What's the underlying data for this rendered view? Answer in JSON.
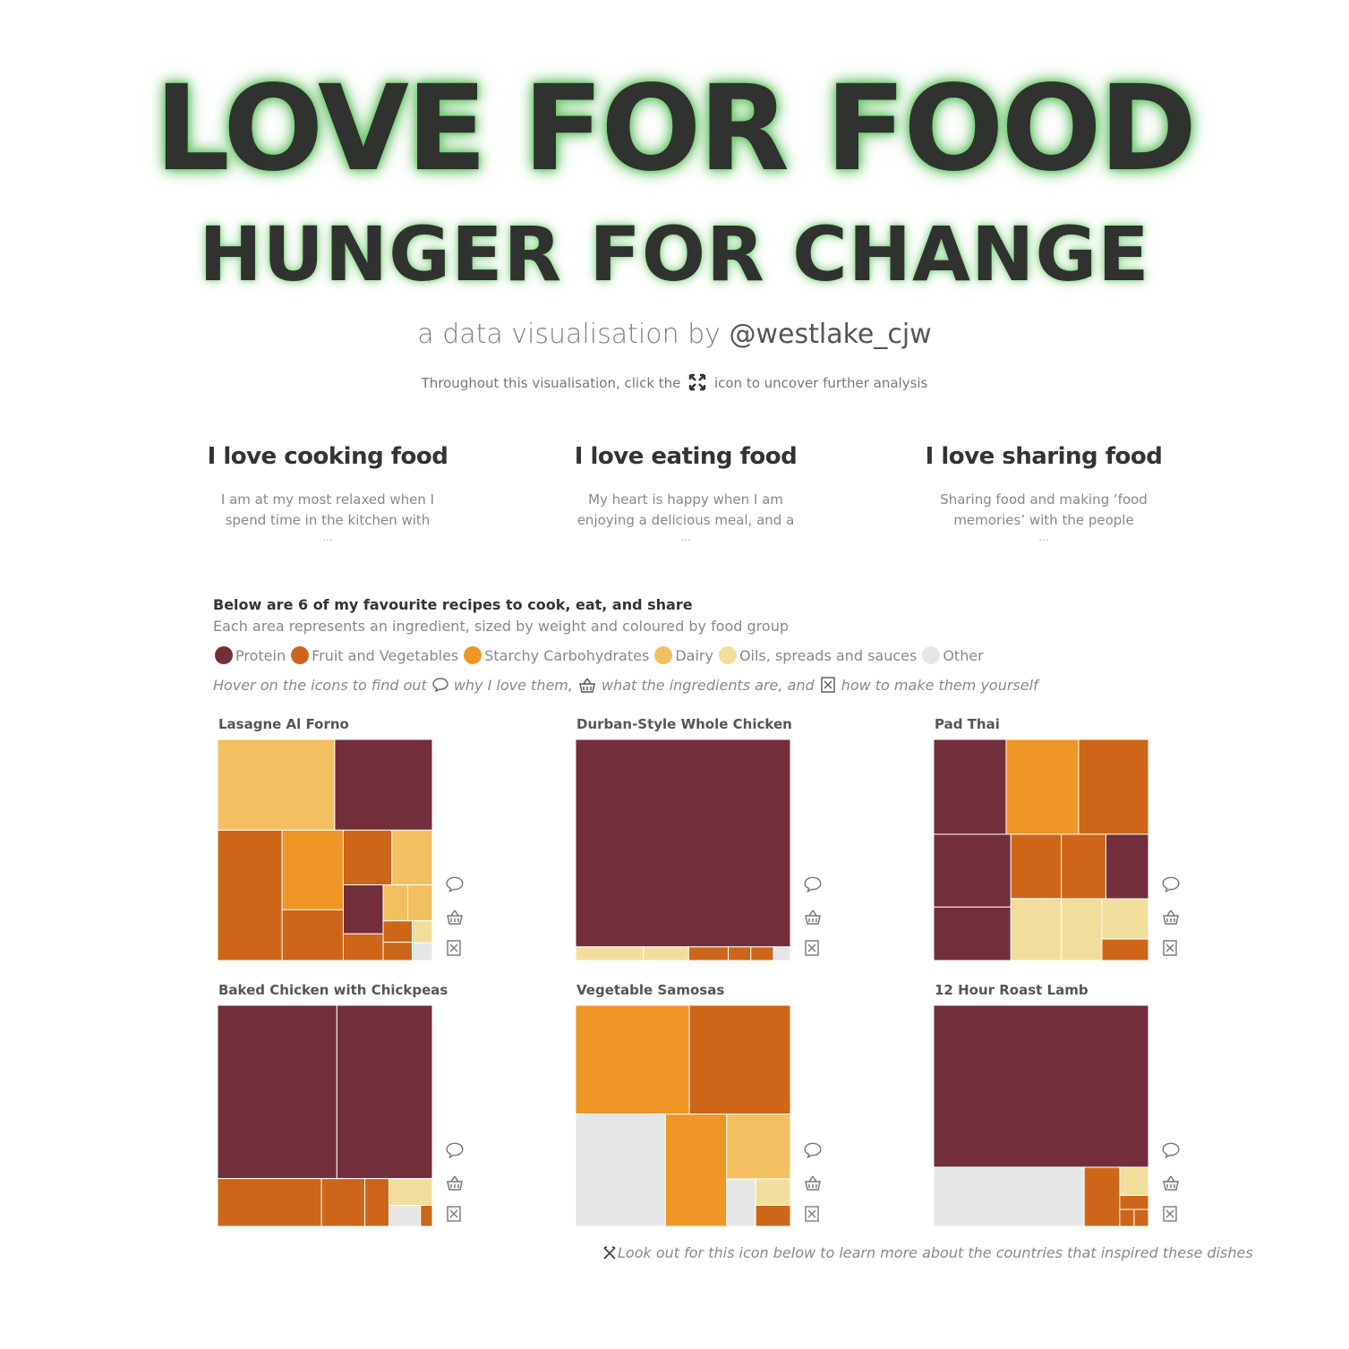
{
  "header": {
    "title": "LOVE FOR FOOD",
    "subtitle": "HUNGER FOR CHANGE",
    "byline_prefix": "a data visualisation by",
    "byline_handle": "@westlake_cjw",
    "instruction_before": "Throughout this visualisation, click the",
    "instruction_after": "icon to uncover further analysis",
    "instruction_icon": "expand-icon"
  },
  "columns": [
    {
      "heading": "I love cooking food",
      "text": "I am at my most relaxed when I spend time in the kitchen with",
      "more": "..."
    },
    {
      "heading": "I love eating food",
      "text": "My heart is happy when I am enjoying a delicious meal, and a",
      "more": "..."
    },
    {
      "heading": "I love sharing food",
      "text": "Sharing food and making ’food memories’ with the people",
      "more": "..."
    }
  ],
  "intro": {
    "line1": "Below are 6 of my favourite recipes to cook, eat, and share",
    "line2": "Each area represents an ingredient, sized by weight and coloured by food group"
  },
  "legend": [
    {
      "label": "Protein",
      "color": "#722e3a"
    },
    {
      "label": "Fruit and Vegetables",
      "color": "#cd6619"
    },
    {
      "label": "Starchy Carbohydrates",
      "color": "#ef9626"
    },
    {
      "label": "Dairy",
      "color": "#f2c061"
    },
    {
      "label": "Oils, spreads and sauces",
      "color": "#f2de9c"
    },
    {
      "label": "Other",
      "color": "#e6e6e6"
    }
  ],
  "hover_hint": {
    "part1": "Hover on the icons to find out",
    "part2": "why I love them,",
    "part3": "what the ingredients are, and",
    "part4": "how to make them yourself",
    "icons": [
      "speech-bubble-icon",
      "basket-icon",
      "recipe-card-icon"
    ]
  },
  "footer": {
    "text": "Look out for this icon below to learn more about the countries that inspired these dishes",
    "icon": "cutlery-icon"
  },
  "chart_data": [
    {
      "type": "treemap",
      "title": "Lasagne Al Forno",
      "encoding": "area = ingredient weight, colour = food group",
      "items": [
        {
          "group": "Fruit and Vegetables",
          "value": 9.5
        },
        {
          "group": "Protein",
          "value": 10
        },
        {
          "group": "Fruit and Vegetables",
          "value": 3.5
        },
        {
          "group": "Fruit and Vegetables",
          "value": 3
        },
        {
          "group": "Fruit and Vegetables",
          "value": 1.2
        },
        {
          "group": "Fruit and Vegetables",
          "value": 0.7
        },
        {
          "group": "Protein",
          "value": 2.2
        },
        {
          "group": "Dairy",
          "value": 12
        },
        {
          "group": "Dairy",
          "value": 2.5
        },
        {
          "group": "Dairy",
          "value": 1
        },
        {
          "group": "Dairy",
          "value": 1
        },
        {
          "group": "Starchy Carbohydrates",
          "value": 5.5
        },
        {
          "group": "Fruit and Vegetables",
          "value": 0.6
        },
        {
          "group": "Oils, spreads and sauces",
          "value": 0.5
        },
        {
          "group": "Other",
          "value": 0.4
        }
      ]
    },
    {
      "type": "treemap",
      "title": "Durban-Style Whole Chicken",
      "encoding": "area = ingredient weight, colour = food group",
      "items": [
        {
          "group": "Protein",
          "value": 58
        },
        {
          "group": "Oils, spreads and sauces",
          "value": 1.2
        },
        {
          "group": "Oils, spreads and sauces",
          "value": 0.8
        },
        {
          "group": "Fruit and Vegetables",
          "value": 0.7
        },
        {
          "group": "Fruit and Vegetables",
          "value": 0.4
        },
        {
          "group": "Fruit and Vegetables",
          "value": 0.4
        },
        {
          "group": "Other",
          "value": 0.3
        }
      ]
    },
    {
      "type": "treemap",
      "title": "Pad Thai",
      "encoding": "area = ingredient weight, colour = food group",
      "items": [
        {
          "group": "Protein",
          "value": 5.5
        },
        {
          "group": "Protein",
          "value": 4.5
        },
        {
          "group": "Protein",
          "value": 3.3
        },
        {
          "group": "Protein",
          "value": 2.2
        },
        {
          "group": "Fruit and Vegetables",
          "value": 5.3
        },
        {
          "group": "Fruit and Vegetables",
          "value": 2.6
        },
        {
          "group": "Fruit and Vegetables",
          "value": 2.3
        },
        {
          "group": "Fruit and Vegetables",
          "value": 0.8
        },
        {
          "group": "Starchy Carbohydrates",
          "value": 5.5
        },
        {
          "group": "Oils, spreads and sauces",
          "value": 2.5
        },
        {
          "group": "Oils, spreads and sauces",
          "value": 2
        },
        {
          "group": "Oils, spreads and sauces",
          "value": 1.5
        }
      ]
    },
    {
      "type": "treemap",
      "title": "Baked Chicken with Chickpeas",
      "encoding": "area = ingredient weight, colour = food group",
      "items": [
        {
          "group": "Protein",
          "value": 25
        },
        {
          "group": "Protein",
          "value": 20
        },
        {
          "group": "Fruit and Vegetables",
          "value": 6
        },
        {
          "group": "Fruit and Vegetables",
          "value": 2.5
        },
        {
          "group": "Fruit and Vegetables",
          "value": 1.4
        },
        {
          "group": "Fruit and Vegetables",
          "value": 0.3
        },
        {
          "group": "Oils, spreads and sauces",
          "value": 1.4
        },
        {
          "group": "Other",
          "value": 0.8
        }
      ]
    },
    {
      "type": "treemap",
      "title": "Vegetable Samosas",
      "encoding": "area = ingredient weight, colour = food group",
      "items": [
        {
          "group": "Starchy Carbohydrates",
          "value": 13.5
        },
        {
          "group": "Starchy Carbohydrates",
          "value": 7.5
        },
        {
          "group": "Fruit and Vegetables",
          "value": 12
        },
        {
          "group": "Fruit and Vegetables",
          "value": 0.8
        },
        {
          "group": "Other",
          "value": 11
        },
        {
          "group": "Other",
          "value": 1.5
        },
        {
          "group": "Dairy",
          "value": 4.5
        },
        {
          "group": "Oils, spreads and sauces",
          "value": 1
        }
      ]
    },
    {
      "type": "treemap",
      "title": "12 Hour Roast Lamb",
      "encoding": "area = ingredient weight, colour = food group",
      "items": [
        {
          "group": "Protein",
          "value": 43
        },
        {
          "group": "Other",
          "value": 11
        },
        {
          "group": "Fruit and Vegetables",
          "value": 2.6
        },
        {
          "group": "Fruit and Vegetables",
          "value": 0.5
        },
        {
          "group": "Fruit and Vegetables",
          "value": 0.3
        },
        {
          "group": "Fruit and Vegetables",
          "value": 0.3
        },
        {
          "group": "Oils, spreads and sauces",
          "value": 1
        }
      ]
    }
  ]
}
